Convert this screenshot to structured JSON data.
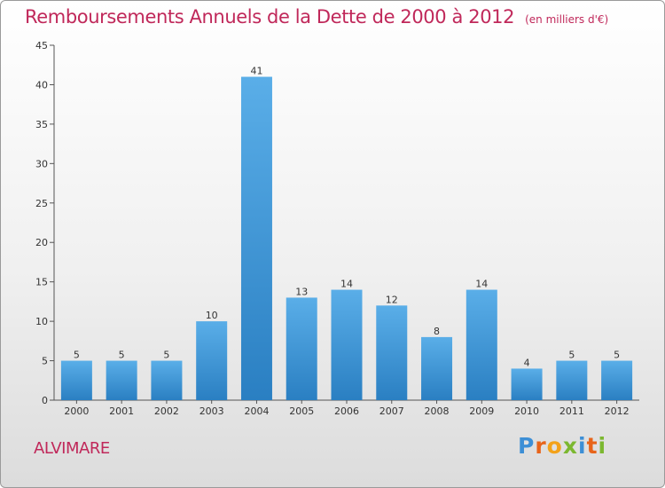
{
  "header": {
    "title": "Remboursements Annuels de la Dette de 2000 à 2012",
    "unit": "(en milliers d'€)"
  },
  "footer": {
    "commune": "ALVIMARE",
    "logo": "Proxiti"
  },
  "colors": {
    "title": "#c0285a",
    "bar_top": "#5aaee8",
    "bar_bottom": "#2a7fc2",
    "axis": "#333333"
  },
  "chart_data": {
    "type": "bar",
    "title": "Remboursements Annuels de la Dette de 2000 à 2012",
    "categories": [
      "2000",
      "2001",
      "2002",
      "2003",
      "2004",
      "2005",
      "2006",
      "2007",
      "2008",
      "2009",
      "2010",
      "2011",
      "2012"
    ],
    "values": [
      5,
      5,
      5,
      10,
      41,
      13,
      14,
      12,
      8,
      14,
      4,
      5,
      5
    ],
    "ylim": [
      0,
      45
    ],
    "yticks": [
      0,
      5,
      10,
      15,
      20,
      25,
      30,
      35,
      40,
      45
    ],
    "xlabel": "",
    "ylabel": "",
    "grid": false,
    "data_labels": true
  }
}
